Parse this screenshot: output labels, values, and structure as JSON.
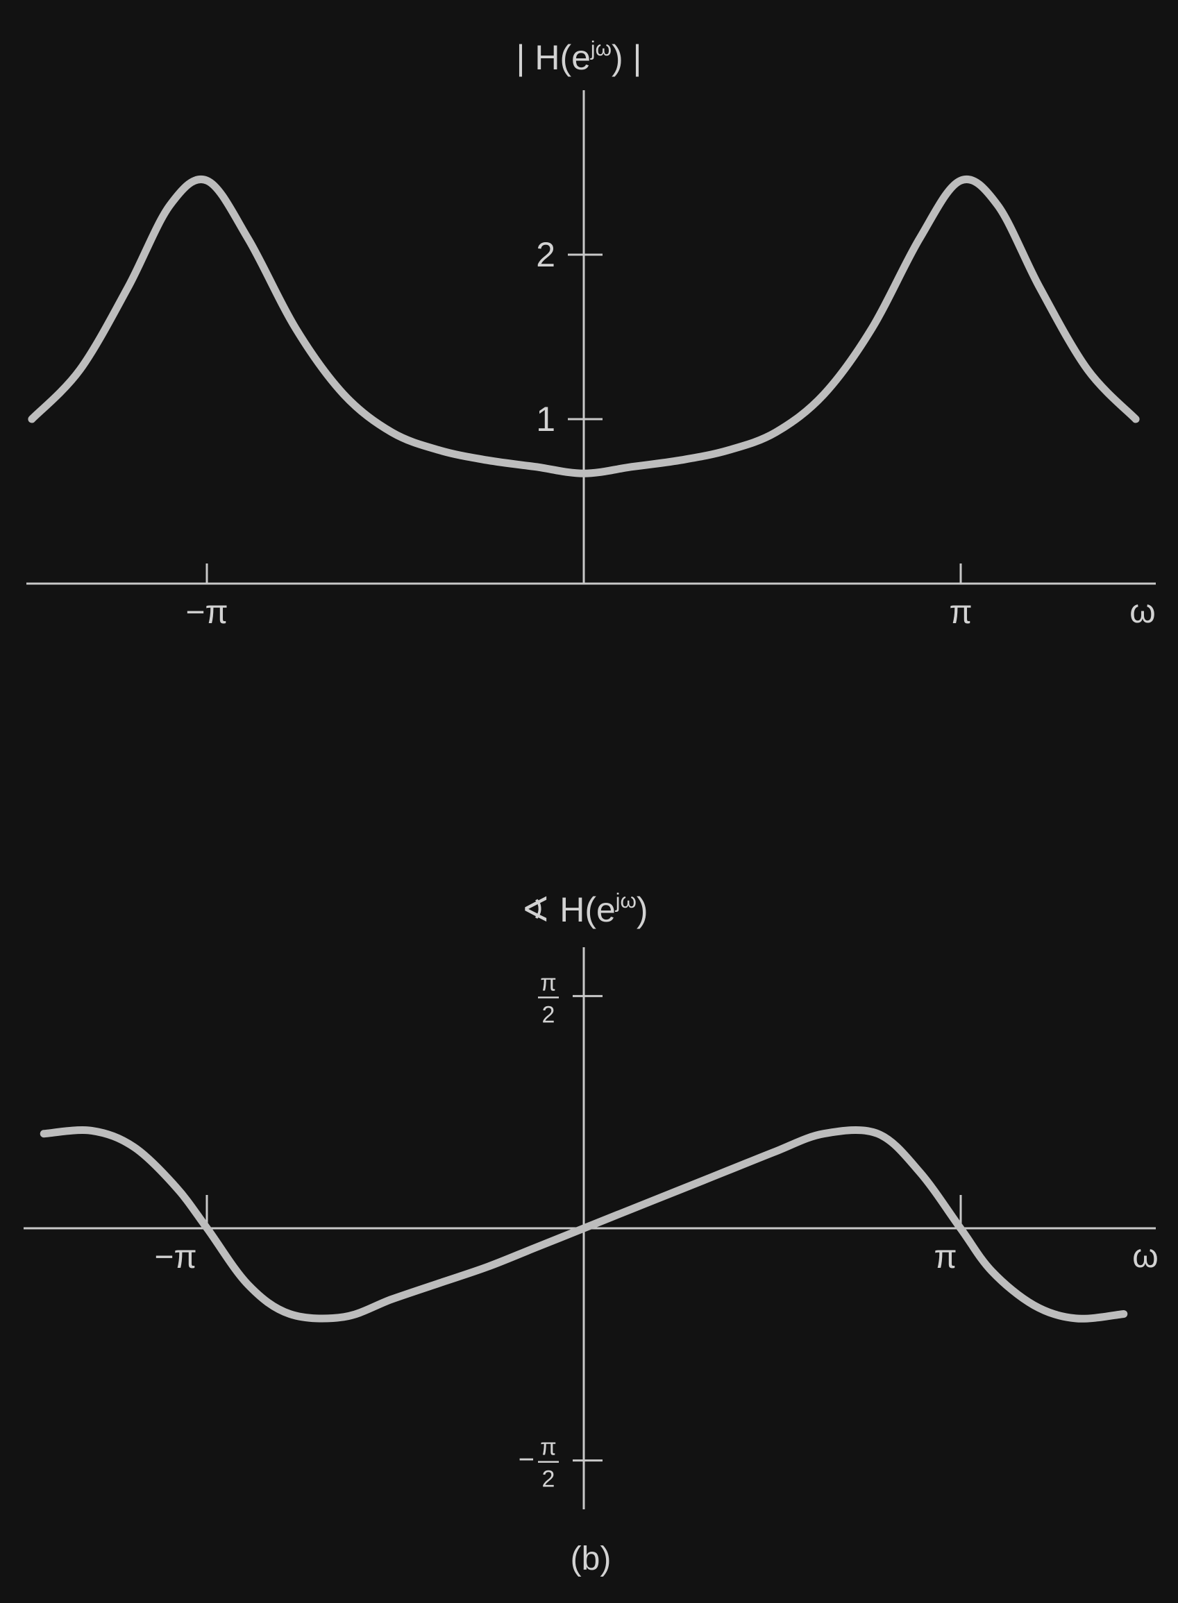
{
  "caption": "(b)",
  "chart_data": [
    {
      "type": "line",
      "ylabel": "| H(e^jω) |",
      "xlabel": "ω",
      "x_ticks": [
        {
          "value": -3.1416,
          "label": "−π"
        },
        {
          "value": 3.1416,
          "label": "π"
        }
      ],
      "y_ticks": [
        {
          "value": 1,
          "label": "1"
        },
        {
          "value": 2,
          "label": "2"
        }
      ],
      "xlim": [
        -4.8,
        4.7
      ],
      "ylim": [
        0,
        3.0
      ],
      "grid": false,
      "x": [
        -4.6,
        -4.2,
        -3.8,
        -3.45,
        -3.14,
        -2.8,
        -2.4,
        -2.0,
        -1.6,
        -1.2,
        -0.8,
        -0.4,
        0.0,
        0.4,
        0.8,
        1.2,
        1.6,
        2.0,
        2.4,
        2.8,
        3.14,
        3.45,
        3.8,
        4.2,
        4.6
      ],
      "values": [
        1.0,
        1.3,
        1.8,
        2.3,
        2.45,
        2.1,
        1.55,
        1.15,
        0.92,
        0.81,
        0.75,
        0.71,
        0.67,
        0.71,
        0.75,
        0.81,
        0.92,
        1.15,
        1.55,
        2.1,
        2.45,
        2.3,
        1.8,
        1.3,
        1.0
      ]
    },
    {
      "type": "line",
      "ylabel": "∢ H(e^jω)",
      "xlabel": "ω",
      "x_ticks": [
        {
          "value": -3.1416,
          "label": "−π"
        },
        {
          "value": 3.1416,
          "label": "π"
        }
      ],
      "y_ticks": [
        {
          "value": 1.5708,
          "num": "π",
          "den": "2",
          "sign": ""
        },
        {
          "value": -1.5708,
          "num": "π",
          "den": "2",
          "sign": "−"
        }
      ],
      "xlim": [
        -4.8,
        4.7
      ],
      "ylim": [
        -1.9,
        1.9
      ],
      "grid": false,
      "x": [
        -4.5,
        -4.1,
        -3.75,
        -3.4,
        -3.14,
        -2.8,
        -2.45,
        -2.0,
        -1.6,
        -1.2,
        -0.8,
        -0.4,
        0.0,
        0.4,
        0.8,
        1.2,
        1.6,
        2.0,
        2.45,
        2.8,
        3.14,
        3.4,
        3.75,
        4.1,
        4.5
      ],
      "values": [
        0.64,
        0.66,
        0.55,
        0.28,
        0.0,
        -0.38,
        -0.58,
        -0.6,
        -0.48,
        -0.37,
        -0.26,
        -0.13,
        0.0,
        0.13,
        0.26,
        0.39,
        0.52,
        0.64,
        0.64,
        0.38,
        0.0,
        -0.29,
        -0.52,
        -0.61,
        -0.58
      ]
    }
  ]
}
